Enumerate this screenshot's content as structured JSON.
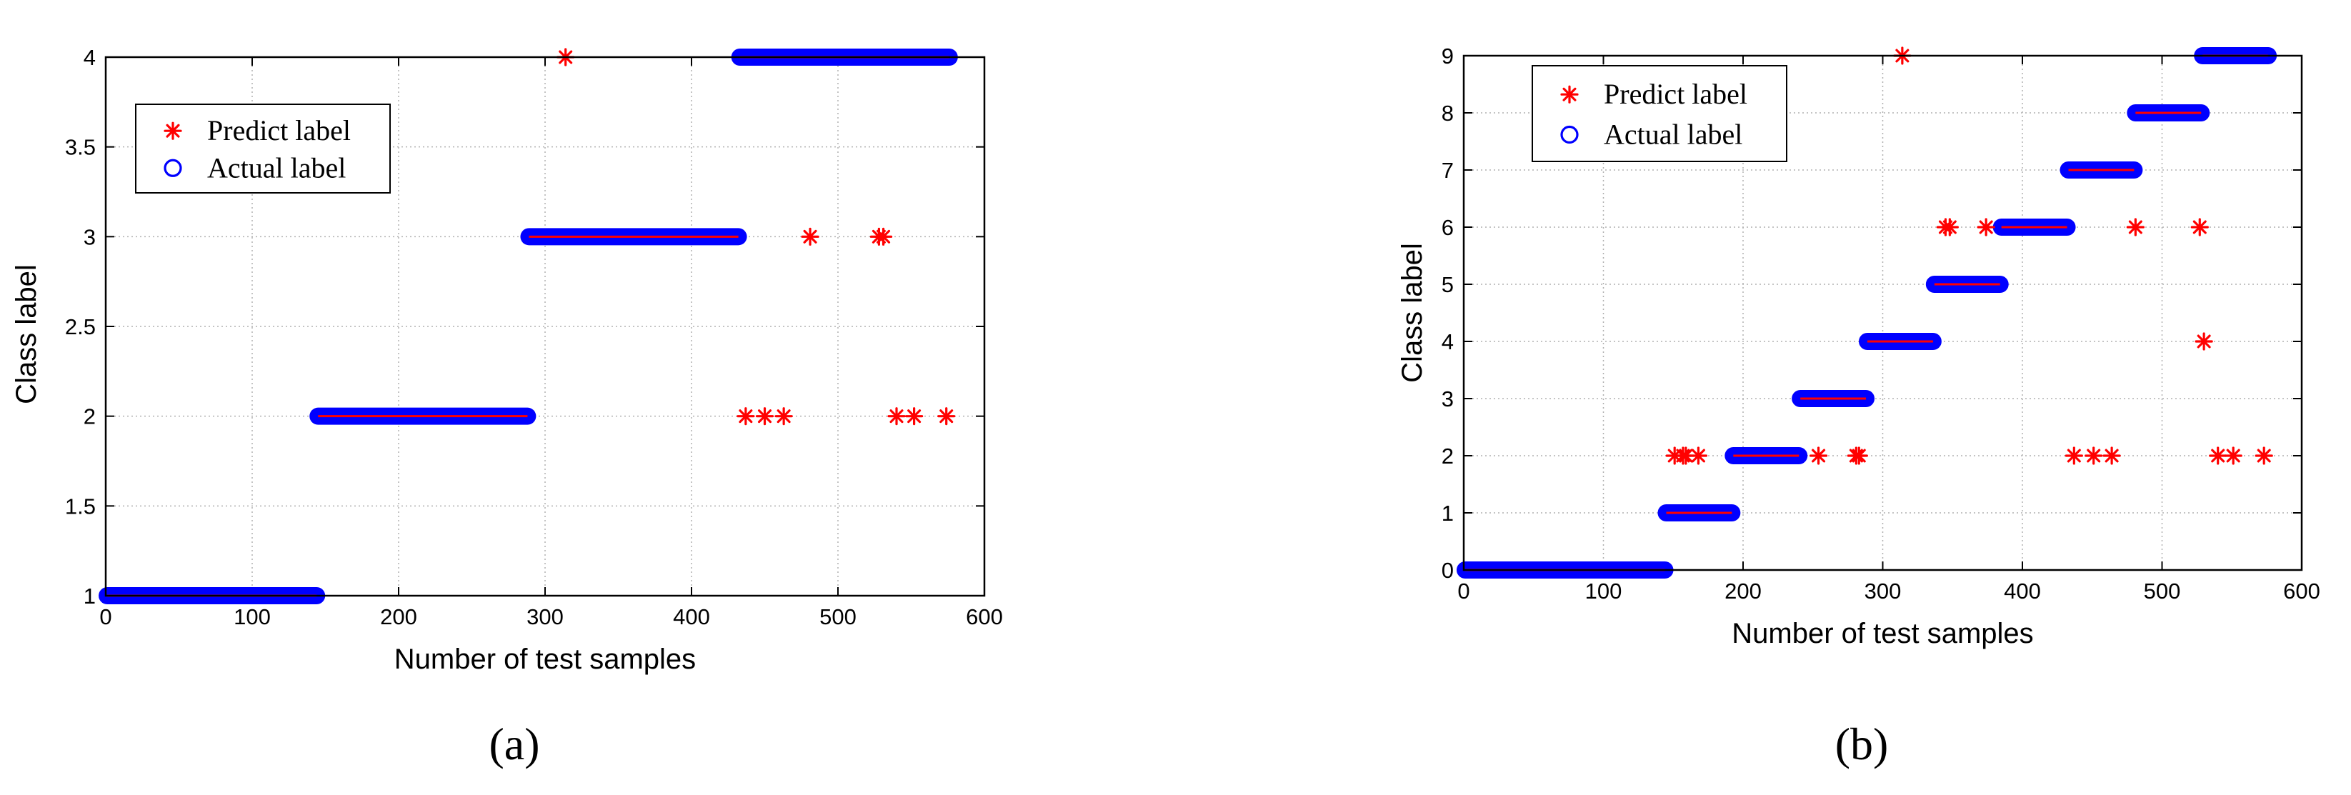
{
  "chart_data": [
    {
      "type": "scatter",
      "caption": "(a)",
      "xlabel": "Number of test samples",
      "ylabel": "Class label",
      "xlim": [
        0,
        600
      ],
      "ylim": [
        1,
        4
      ],
      "xticks": [
        0,
        100,
        200,
        300,
        400,
        500,
        600
      ],
      "yticks": [
        1,
        1.5,
        2,
        2.5,
        3,
        3.5,
        4
      ],
      "ytick_labels": [
        "1",
        "1.5",
        "2",
        "2.5",
        "3",
        "3.5",
        "4"
      ],
      "grid": true,
      "legend_position": "top-left",
      "colors": {
        "predict": "#ff0000",
        "actual": "#0000ff"
      },
      "series": [
        {
          "name": "Predict label",
          "marker": "asterisk",
          "ranges": [
            [
              1,
              144,
              1
            ],
            [
              145,
              288,
              2
            ],
            [
              289,
              432,
              3
            ],
            [
              433,
              576,
              4
            ]
          ],
          "misclassified": [
            {
              "x": 314,
              "y": 4
            },
            {
              "x": 481,
              "y": 3
            },
            {
              "x": 528,
              "y": 3
            },
            {
              "x": 531,
              "y": 3
            },
            {
              "x": 437,
              "y": 2
            },
            {
              "x": 450,
              "y": 2
            },
            {
              "x": 463,
              "y": 2
            },
            {
              "x": 540,
              "y": 2
            },
            {
              "x": 552,
              "y": 2
            },
            {
              "x": 574,
              "y": 2
            }
          ]
        },
        {
          "name": "Actual label",
          "marker": "circle",
          "ranges": [
            [
              1,
              144,
              1
            ],
            [
              145,
              288,
              2
            ],
            [
              289,
              432,
              3
            ],
            [
              433,
              576,
              4
            ]
          ]
        }
      ]
    },
    {
      "type": "scatter",
      "caption": "(b)",
      "xlabel": "Number of test samples",
      "ylabel": "Class label",
      "xlim": [
        0,
        600
      ],
      "ylim": [
        0,
        9
      ],
      "xticks": [
        0,
        100,
        200,
        300,
        400,
        500,
        600
      ],
      "yticks": [
        0,
        1,
        2,
        3,
        4,
        5,
        6,
        7,
        8,
        9
      ],
      "ytick_labels": [
        "0",
        "1",
        "2",
        "3",
        "4",
        "5",
        "6",
        "7",
        "8",
        "9"
      ],
      "grid": true,
      "legend_position": "top-left",
      "colors": {
        "predict": "#ff0000",
        "actual": "#0000ff"
      },
      "series": [
        {
          "name": "Predict label",
          "marker": "asterisk",
          "ranges": [
            [
              1,
              144,
              0
            ],
            [
              145,
              192,
              1
            ],
            [
              193,
              240,
              2
            ],
            [
              241,
              288,
              3
            ],
            [
              289,
              336,
              4
            ],
            [
              337,
              384,
              5
            ],
            [
              385,
              432,
              6
            ],
            [
              433,
              480,
              7
            ],
            [
              481,
              528,
              8
            ],
            [
              529,
              576,
              9
            ]
          ],
          "misclassified": [
            {
              "x": 314,
              "y": 9
            },
            {
              "x": 345,
              "y": 6
            },
            {
              "x": 348,
              "y": 6
            },
            {
              "x": 374,
              "y": 6
            },
            {
              "x": 481,
              "y": 6
            },
            {
              "x": 527,
              "y": 6
            },
            {
              "x": 530,
              "y": 4
            },
            {
              "x": 151,
              "y": 2
            },
            {
              "x": 157,
              "y": 2
            },
            {
              "x": 159,
              "y": 2
            },
            {
              "x": 168,
              "y": 2
            },
            {
              "x": 254,
              "y": 2
            },
            {
              "x": 281,
              "y": 2
            },
            {
              "x": 283,
              "y": 2
            },
            {
              "x": 437,
              "y": 2
            },
            {
              "x": 451,
              "y": 2
            },
            {
              "x": 464,
              "y": 2
            },
            {
              "x": 540,
              "y": 2
            },
            {
              "x": 551,
              "y": 2
            },
            {
              "x": 573,
              "y": 2
            }
          ]
        },
        {
          "name": "Actual label",
          "marker": "circle",
          "ranges": [
            [
              1,
              144,
              0
            ],
            [
              145,
              192,
              1
            ],
            [
              193,
              240,
              2
            ],
            [
              241,
              288,
              3
            ],
            [
              289,
              336,
              4
            ],
            [
              337,
              384,
              5
            ],
            [
              385,
              432,
              6
            ],
            [
              433,
              480,
              7
            ],
            [
              481,
              528,
              8
            ],
            [
              529,
              576,
              9
            ]
          ]
        }
      ]
    }
  ]
}
